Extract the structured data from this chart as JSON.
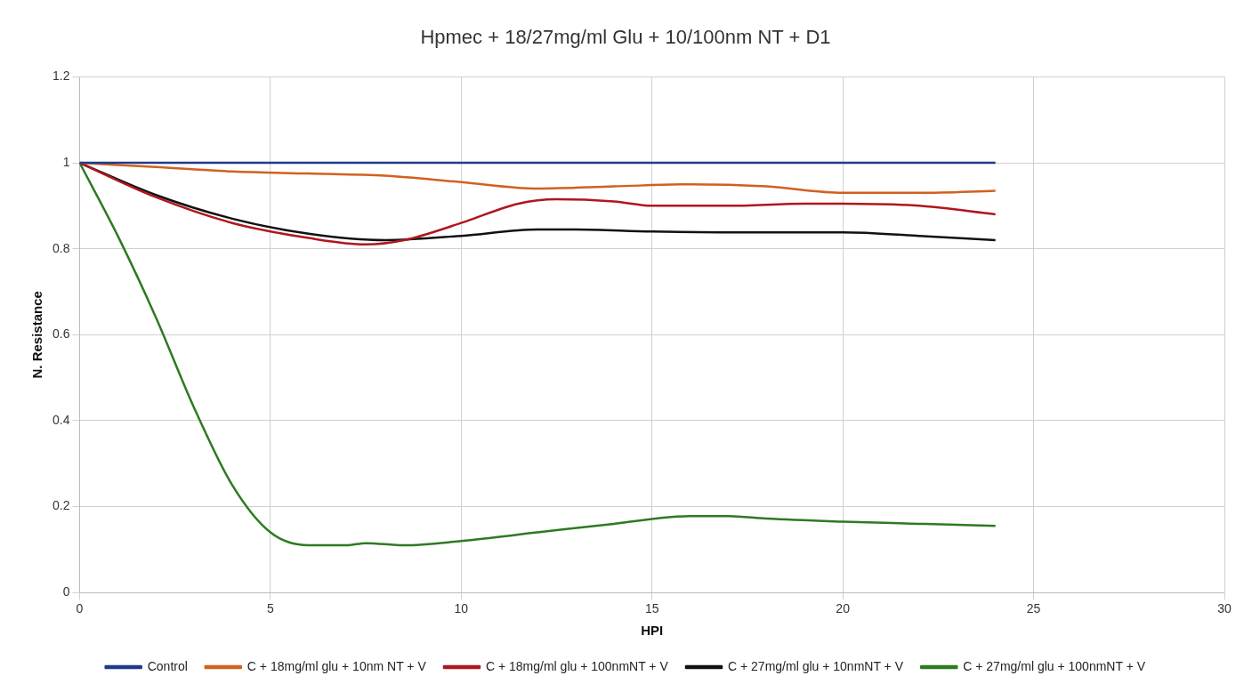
{
  "chart_data": {
    "type": "line",
    "title": "Hpmec + 18/27mg/ml Glu + 10/100nm NT + D1",
    "xlabel": "HPI",
    "ylabel": "N. Resistance",
    "xlim": [
      0,
      30
    ],
    "xticks": [
      0,
      5,
      10,
      15,
      20,
      25,
      30
    ],
    "ylim": [
      0,
      1.2
    ],
    "yticks": [
      0,
      0.2,
      0.4,
      0.6,
      0.8,
      1,
      1.2
    ],
    "grid": true,
    "legend": "bottom",
    "marker": "none",
    "line_style": "solid",
    "series": [
      {
        "name": "Control",
        "color": "#1f3b8c",
        "x": [
          0,
          4,
          8,
          12,
          16,
          20,
          24
        ],
        "values": [
          1,
          1,
          1,
          1,
          1,
          1,
          1
        ]
      },
      {
        "name": "C + 18mg/ml glu + 10nm NT + V",
        "color": "#d2601f",
        "x": [
          0,
          2,
          4,
          6,
          8,
          10,
          12,
          14,
          16,
          18,
          20,
          22,
          24
        ],
        "values": [
          1,
          0.99,
          0.98,
          0.975,
          0.97,
          0.955,
          0.94,
          0.945,
          0.95,
          0.945,
          0.93,
          0.93,
          0.935
        ]
      },
      {
        "name": "C + 18mg/ml glu + 100nmNT + V",
        "color": "#b0161e",
        "x": [
          0,
          2,
          4,
          6,
          7.5,
          8.5,
          10,
          11.5,
          12.5,
          14,
          15,
          17,
          19,
          20,
          22,
          24
        ],
        "values": [
          1,
          0.92,
          0.86,
          0.825,
          0.81,
          0.82,
          0.86,
          0.905,
          0.915,
          0.91,
          0.9,
          0.9,
          0.905,
          0.905,
          0.9,
          0.88
        ]
      },
      {
        "name": "C + 27mg/ml glu + 10nmNT + V",
        "color": "#111111",
        "x": [
          0,
          2,
          4,
          6,
          8,
          10,
          12,
          13,
          15,
          18,
          20,
          22,
          24
        ],
        "values": [
          1,
          0.925,
          0.87,
          0.835,
          0.82,
          0.83,
          0.845,
          0.845,
          0.84,
          0.838,
          0.838,
          0.83,
          0.82
        ]
      },
      {
        "name": "C + 27mg/ml glu + 100nmNT + V",
        "color": "#2e7a22",
        "x": [
          0,
          1,
          2,
          3,
          4,
          5,
          6,
          7,
          7.5,
          8.5,
          10,
          12,
          14,
          16,
          17,
          18,
          20,
          22,
          24
        ],
        "values": [
          1,
          0.83,
          0.64,
          0.43,
          0.25,
          0.14,
          0.11,
          0.11,
          0.115,
          0.11,
          0.12,
          0.14,
          0.16,
          0.178,
          0.178,
          0.172,
          0.165,
          0.16,
          0.155
        ]
      }
    ]
  }
}
